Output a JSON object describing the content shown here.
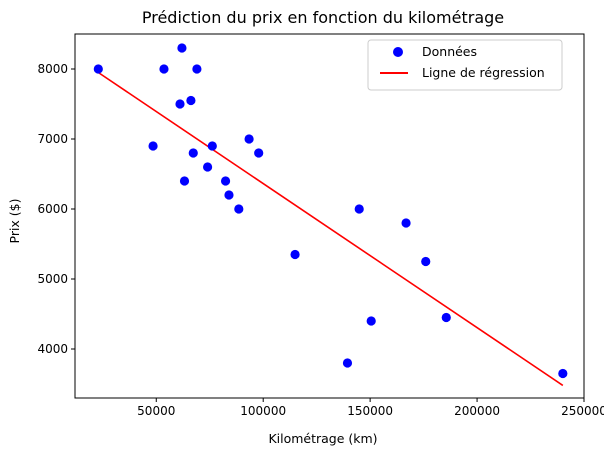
{
  "chart_data": {
    "type": "scatter",
    "title": "Prédiction du prix en fonction du kilométrage",
    "xlabel": "Kilométrage (km)",
    "ylabel": "Prix ($)",
    "xlim": [
      12000,
      250000
    ],
    "ylim": [
      3300,
      8500
    ],
    "xticks": [
      50000,
      100000,
      150000,
      200000,
      250000
    ],
    "xtick_labels": [
      "50000",
      "100000",
      "150000",
      "200000",
      "250000"
    ],
    "yticks": [
      4000,
      5000,
      6000,
      7000,
      8000
    ],
    "ytick_labels": [
      "4000",
      "5000",
      "6000",
      "7000",
      "8000"
    ],
    "grid": false,
    "legend_position": "top-right",
    "series": [
      {
        "name": "Données",
        "kind": "scatter",
        "color": "#0000ff",
        "x": [
          22900,
          48500,
          53600,
          61100,
          62000,
          63200,
          66200,
          67300,
          69000,
          74000,
          76200,
          82400,
          84000,
          88600,
          93400,
          97900,
          114900,
          139400,
          144900,
          150500,
          166800,
          176000,
          185600,
          240100
        ],
        "y": [
          8000,
          6900,
          8000,
          7500,
          8300,
          6400,
          7550,
          6800,
          8000,
          6600,
          6900,
          6400,
          6200,
          6000,
          7000,
          6800,
          5350,
          3800,
          6000,
          4400,
          5800,
          5250,
          4450,
          3650
        ]
      },
      {
        "name": "Ligne de régression",
        "kind": "line",
        "color": "#ff0000",
        "x": [
          22900,
          240100
        ],
        "y": [
          7950,
          3480
        ]
      }
    ]
  }
}
